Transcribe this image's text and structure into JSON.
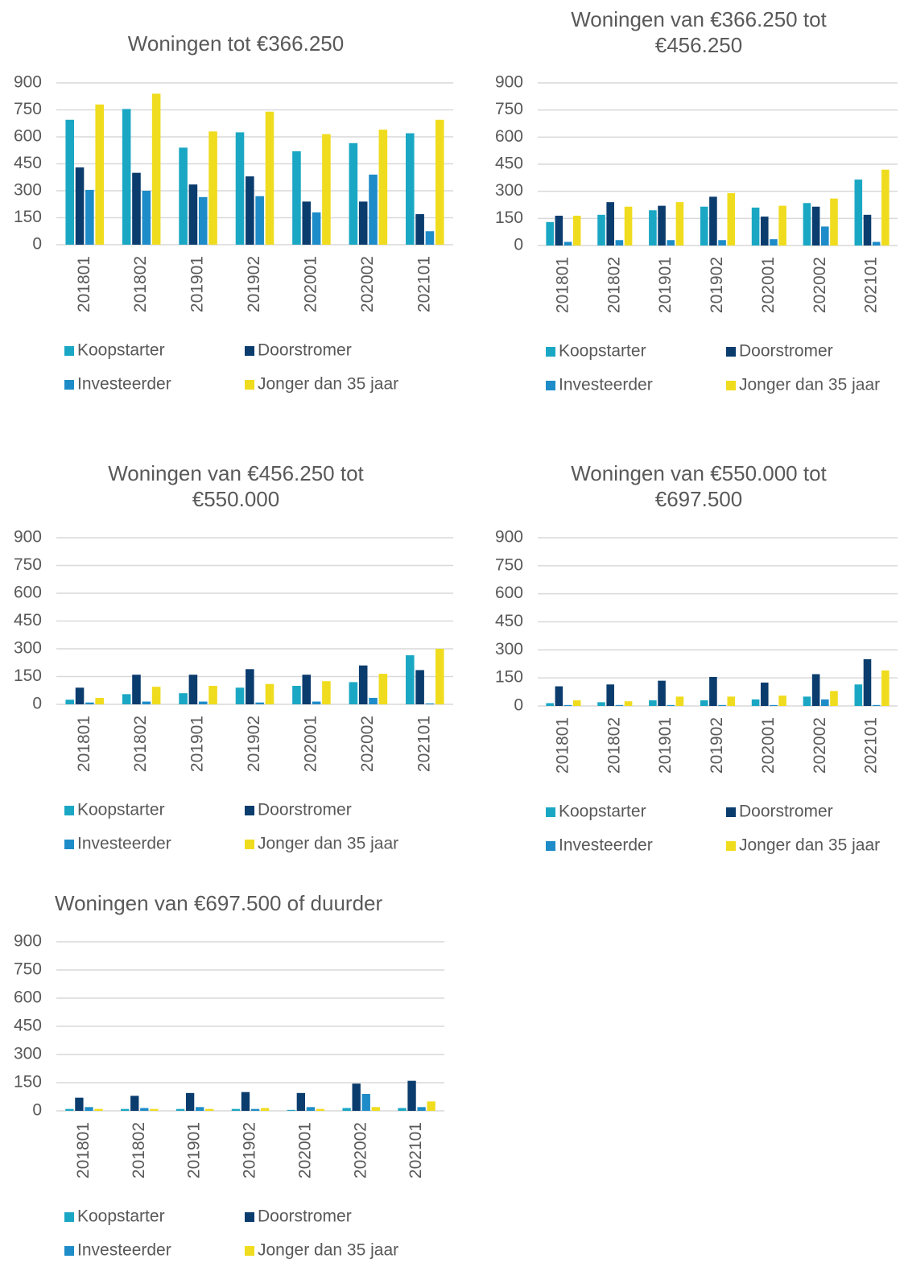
{
  "chart_data": [
    {
      "type": "bar",
      "title": "Woningen tot €366.250",
      "categories": [
        "201801",
        "201802",
        "201901",
        "201902",
        "202001",
        "202002",
        "202101"
      ],
      "series": [
        {
          "name": "Koopstarter",
          "color": "#1aa7c4",
          "values": [
            695,
            755,
            540,
            625,
            520,
            565,
            620
          ]
        },
        {
          "name": "Doorstromer",
          "color": "#0b3c6e",
          "values": [
            430,
            400,
            335,
            380,
            240,
            240,
            170
          ]
        },
        {
          "name": "Investeerder",
          "color": "#1e8cc8",
          "values": [
            305,
            300,
            265,
            270,
            180,
            390,
            75
          ]
        },
        {
          "name": "Jonger dan 35 jaar",
          "color": "#f0dc1e",
          "values": [
            780,
            840,
            630,
            740,
            615,
            640,
            695
          ]
        }
      ],
      "ylim": [
        0,
        900
      ],
      "yticks": [
        0,
        150,
        300,
        450,
        600,
        750,
        900
      ],
      "grid": true
    },
    {
      "type": "bar",
      "title": "Woningen van €366.250 tot €456.250",
      "categories": [
        "201801",
        "201802",
        "201901",
        "201902",
        "202001",
        "202002",
        "202101"
      ],
      "series": [
        {
          "name": "Koopstarter",
          "color": "#1aa7c4",
          "values": [
            130,
            170,
            195,
            215,
            210,
            235,
            365
          ]
        },
        {
          "name": "Doorstromer",
          "color": "#0b3c6e",
          "values": [
            165,
            240,
            220,
            270,
            160,
            215,
            170
          ]
        },
        {
          "name": "Investeerder",
          "color": "#1e8cc8",
          "values": [
            20,
            30,
            30,
            30,
            35,
            105,
            20
          ]
        },
        {
          "name": "Jonger dan 35 jaar",
          "color": "#f0dc1e",
          "values": [
            165,
            215,
            240,
            290,
            220,
            260,
            420
          ]
        }
      ],
      "ylim": [
        0,
        900
      ],
      "yticks": [
        0,
        150,
        300,
        450,
        600,
        750,
        900
      ],
      "grid": true
    },
    {
      "type": "bar",
      "title": "Woningen van €456.250 tot €550.000",
      "categories": [
        "201801",
        "201802",
        "201901",
        "201902",
        "202001",
        "202002",
        "202101"
      ],
      "series": [
        {
          "name": "Koopstarter",
          "color": "#1aa7c4",
          "values": [
            25,
            55,
            60,
            90,
            100,
            120,
            265
          ]
        },
        {
          "name": "Doorstromer",
          "color": "#0b3c6e",
          "values": [
            90,
            160,
            160,
            190,
            160,
            210,
            185
          ]
        },
        {
          "name": "Investeerder",
          "color": "#1e8cc8",
          "values": [
            10,
            15,
            15,
            10,
            15,
            35,
            5
          ]
        },
        {
          "name": "Jonger dan 35 jaar",
          "color": "#f0dc1e",
          "values": [
            35,
            95,
            100,
            110,
            125,
            165,
            300
          ]
        }
      ],
      "ylim": [
        0,
        900
      ],
      "yticks": [
        0,
        150,
        300,
        450,
        600,
        750,
        900
      ],
      "grid": true
    },
    {
      "type": "bar",
      "title": "Woningen van €550.000 tot €697.500",
      "categories": [
        "201801",
        "201802",
        "201901",
        "201902",
        "202001",
        "202002",
        "202101"
      ],
      "series": [
        {
          "name": "Koopstarter",
          "color": "#1aa7c4",
          "values": [
            15,
            20,
            30,
            30,
            35,
            50,
            115
          ]
        },
        {
          "name": "Doorstromer",
          "color": "#0b3c6e",
          "values": [
            105,
            115,
            135,
            155,
            125,
            170,
            250
          ]
        },
        {
          "name": "Investeerder",
          "color": "#1e8cc8",
          "values": [
            5,
            5,
            5,
            5,
            5,
            35,
            5
          ]
        },
        {
          "name": "Jonger dan 35 jaar",
          "color": "#f0dc1e",
          "values": [
            30,
            25,
            50,
            50,
            55,
            80,
            190
          ]
        }
      ],
      "ylim": [
        0,
        900
      ],
      "yticks": [
        0,
        150,
        300,
        450,
        600,
        750,
        900
      ],
      "grid": true
    },
    {
      "type": "bar",
      "title": "Woningen van €697.500 of duurder",
      "categories": [
        "201801",
        "201802",
        "201901",
        "201902",
        "202001",
        "202002",
        "202101"
      ],
      "series": [
        {
          "name": "Koopstarter",
          "color": "#1aa7c4",
          "values": [
            10,
            10,
            10,
            10,
            5,
            15,
            15
          ]
        },
        {
          "name": "Doorstromer",
          "color": "#0b3c6e",
          "values": [
            70,
            80,
            95,
            100,
            95,
            145,
            160
          ]
        },
        {
          "name": "Investeerder",
          "color": "#1e8cc8",
          "values": [
            20,
            15,
            20,
            10,
            20,
            90,
            20
          ]
        },
        {
          "name": "Jonger dan 35 jaar",
          "color": "#f0dc1e",
          "values": [
            10,
            10,
            10,
            15,
            10,
            20,
            50
          ]
        }
      ],
      "ylim": [
        0,
        900
      ],
      "yticks": [
        0,
        150,
        300,
        450,
        600,
        750,
        900
      ],
      "grid": true
    }
  ]
}
